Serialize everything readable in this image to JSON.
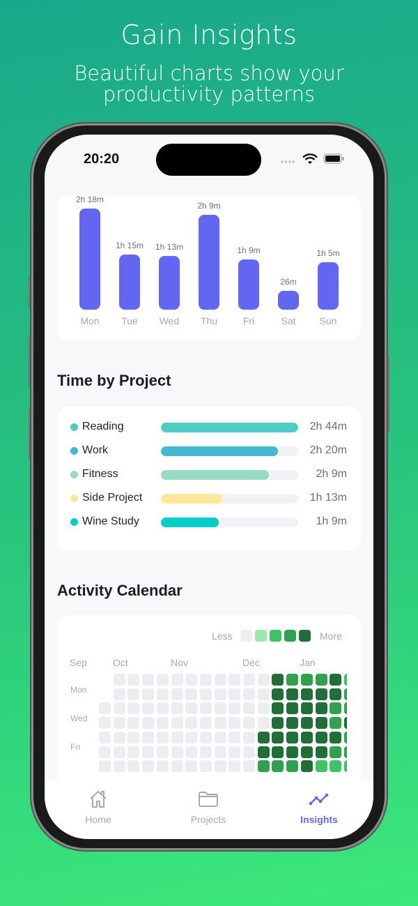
{
  "hero": {
    "title": "Gain Insights",
    "subtitle_line1": "Beautiful charts show your",
    "subtitle_line2": "productivity patterns"
  },
  "status_bar": {
    "time": "20:20",
    "icons": [
      "signal-dots-icon",
      "wifi-icon",
      "battery-icon"
    ]
  },
  "chart_data": {
    "type": "bar",
    "categories": [
      "Mon",
      "Tue",
      "Wed",
      "Thu",
      "Fri",
      "Sat",
      "Sun"
    ],
    "values": [
      138,
      75,
      73,
      129,
      69,
      26,
      65
    ],
    "value_labels": [
      "2h 18m",
      "1h 15m",
      "1h 13m",
      "2h 9m",
      "1h 9m",
      "26m",
      "1h 5m"
    ],
    "unit": "minutes",
    "color": "#6366f0"
  },
  "projects": {
    "title": "Time by Project",
    "items": [
      {
        "name": "Reading",
        "value": "2h 44m",
        "fraction": 1.0,
        "color": "#4ecdc4"
      },
      {
        "name": "Work",
        "value": "2h 20m",
        "fraction": 0.854,
        "color": "#45b7d1"
      },
      {
        "name": "Fitness",
        "value": "2h 9m",
        "fraction": 0.787,
        "color": "#96dbc2"
      },
      {
        "name": "Side Project",
        "value": "1h 13m",
        "fraction": 0.445,
        "color": "#ffe79c"
      },
      {
        "name": "Wine Study",
        "value": "1h 9m",
        "fraction": 0.421,
        "color": "#00cec9"
      }
    ]
  },
  "calendar": {
    "title": "Activity Calendar",
    "legend_less": "Less",
    "legend_more": "More",
    "level_colors": [
      "#ebedf0",
      "#9be9a8",
      "#40c463",
      "#30a14e",
      "#216e39"
    ],
    "months": [
      "Sep",
      "Oct",
      "Nov",
      "Dec",
      "Jan"
    ],
    "day_labels": [
      "Mon",
      "Wed",
      "Fri"
    ],
    "weeks": [
      [
        null,
        null,
        0,
        0,
        0,
        0,
        0
      ],
      [
        0,
        0,
        0,
        0,
        0,
        0,
        0
      ],
      [
        0,
        0,
        0,
        0,
        0,
        0,
        0
      ],
      [
        0,
        0,
        0,
        0,
        0,
        0,
        0
      ],
      [
        0,
        0,
        0,
        0,
        0,
        0,
        0
      ],
      [
        0,
        0,
        0,
        0,
        0,
        0,
        0
      ],
      [
        0,
        0,
        0,
        0,
        0,
        0,
        0
      ],
      [
        0,
        0,
        0,
        0,
        0,
        0,
        0
      ],
      [
        0,
        0,
        0,
        0,
        0,
        0,
        0
      ],
      [
        0,
        0,
        0,
        0,
        0,
        0,
        0
      ],
      [
        0,
        0,
        0,
        0,
        0,
        0,
        0
      ],
      [
        0,
        0,
        0,
        0,
        4,
        4,
        3
      ],
      [
        4,
        4,
        4,
        4,
        4,
        4,
        3
      ],
      [
        3,
        4,
        4,
        4,
        4,
        4,
        3
      ],
      [
        3,
        4,
        4,
        4,
        4,
        4,
        4
      ],
      [
        3,
        4,
        4,
        4,
        4,
        4,
        2
      ],
      [
        4,
        4,
        3,
        3,
        4,
        3,
        2
      ],
      [
        2,
        3,
        3,
        4,
        3,
        3,
        2
      ]
    ]
  },
  "tabbar": {
    "active_color": "#6366f0",
    "inactive_color": "#a3a9ba",
    "tabs": [
      {
        "label": "Home",
        "icon": "home-icon"
      },
      {
        "label": "Projects",
        "icon": "folder-icon"
      },
      {
        "label": "Insights",
        "icon": "chart-line-icon",
        "active": true
      }
    ]
  }
}
